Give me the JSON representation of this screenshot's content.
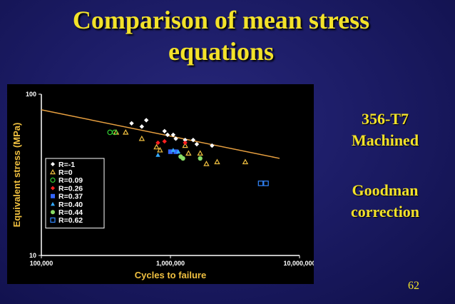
{
  "slide": {
    "title_line1": "Comparison of mean stress",
    "title_line2": "equations",
    "material_line1": "356-T7",
    "material_line2": "Machined",
    "correction_line1": "Goodman",
    "correction_line2": "correction",
    "page_number": "62",
    "colors": {
      "background": "#1c1c66",
      "title": "#f3e22a",
      "plot_background": "#000000",
      "trend_line": "#e8a040"
    }
  },
  "chart_data": {
    "type": "scatter",
    "xlabel": "Cycles to failure",
    "ylabel": "Equivalent stress (MPa)",
    "x_scale": "log",
    "y_scale": "log",
    "xlim": [
      100000,
      10000000
    ],
    "ylim": [
      10,
      100
    ],
    "x_ticks": [
      {
        "value": 100000,
        "label": "100,000"
      },
      {
        "value": 1000000,
        "label": "1,000,000"
      },
      {
        "value": 10000000,
        "label": "10,000,000"
      }
    ],
    "y_ticks": [
      {
        "value": 100,
        "label": "100"
      },
      {
        "value": 10,
        "label": "10"
      }
    ],
    "grid": false,
    "legend_position": "bottom-left",
    "trend_line": {
      "color": "#e8a040",
      "points": [
        [
          100000,
          80
        ],
        [
          7000000,
          40
        ]
      ]
    },
    "series": [
      {
        "name": "R=-1",
        "marker": "diamond-filled",
        "color": "#ffffff",
        "x": [
          500000,
          600000,
          650000,
          900000,
          950000,
          1050000,
          1100000,
          1300000,
          1500000,
          1600000,
          2100000
        ],
        "y": [
          66,
          63,
          69,
          59,
          56,
          56,
          53,
          52,
          52,
          49,
          48
        ]
      },
      {
        "name": "R=0",
        "marker": "triangle-open",
        "color": "#f0c040",
        "x": [
          380000,
          450000,
          600000,
          780000,
          830000,
          1300000,
          1380000,
          1700000,
          1900000,
          2300000,
          3800000
        ],
        "y": [
          58,
          58,
          53,
          47,
          45,
          48,
          43,
          43,
          37,
          38,
          38
        ]
      },
      {
        "name": "R=0.09",
        "marker": "circle-open",
        "color": "#33cc33",
        "x": [
          340000,
          370000
        ],
        "y": [
          58,
          58
        ]
      },
      {
        "name": "R=0.26",
        "marker": "diamond-filled",
        "color": "#ff2020",
        "x": [
          800000,
          900000,
          1300000
        ],
        "y": [
          50,
          51,
          50
        ]
      },
      {
        "name": "R=0.37",
        "marker": "square-filled",
        "color": "#3366ff",
        "x": [
          1000000,
          1100000
        ],
        "y": [
          44,
          44
        ]
      },
      {
        "name": "R=0.40",
        "marker": "triangle-filled",
        "color": "#33aaff",
        "x": [
          800000,
          1050000,
          1150000
        ],
        "y": [
          42,
          45,
          44
        ]
      },
      {
        "name": "R=0.44",
        "marker": "circle-filled",
        "color": "#88dd66",
        "x": [
          1200000,
          1250000,
          1700000
        ],
        "y": [
          41,
          40,
          40
        ]
      },
      {
        "name": "R=0.62",
        "marker": "square-open",
        "color": "#3388ff",
        "x": [
          5000000,
          5500000
        ],
        "y": [
          28,
          28
        ]
      }
    ]
  }
}
